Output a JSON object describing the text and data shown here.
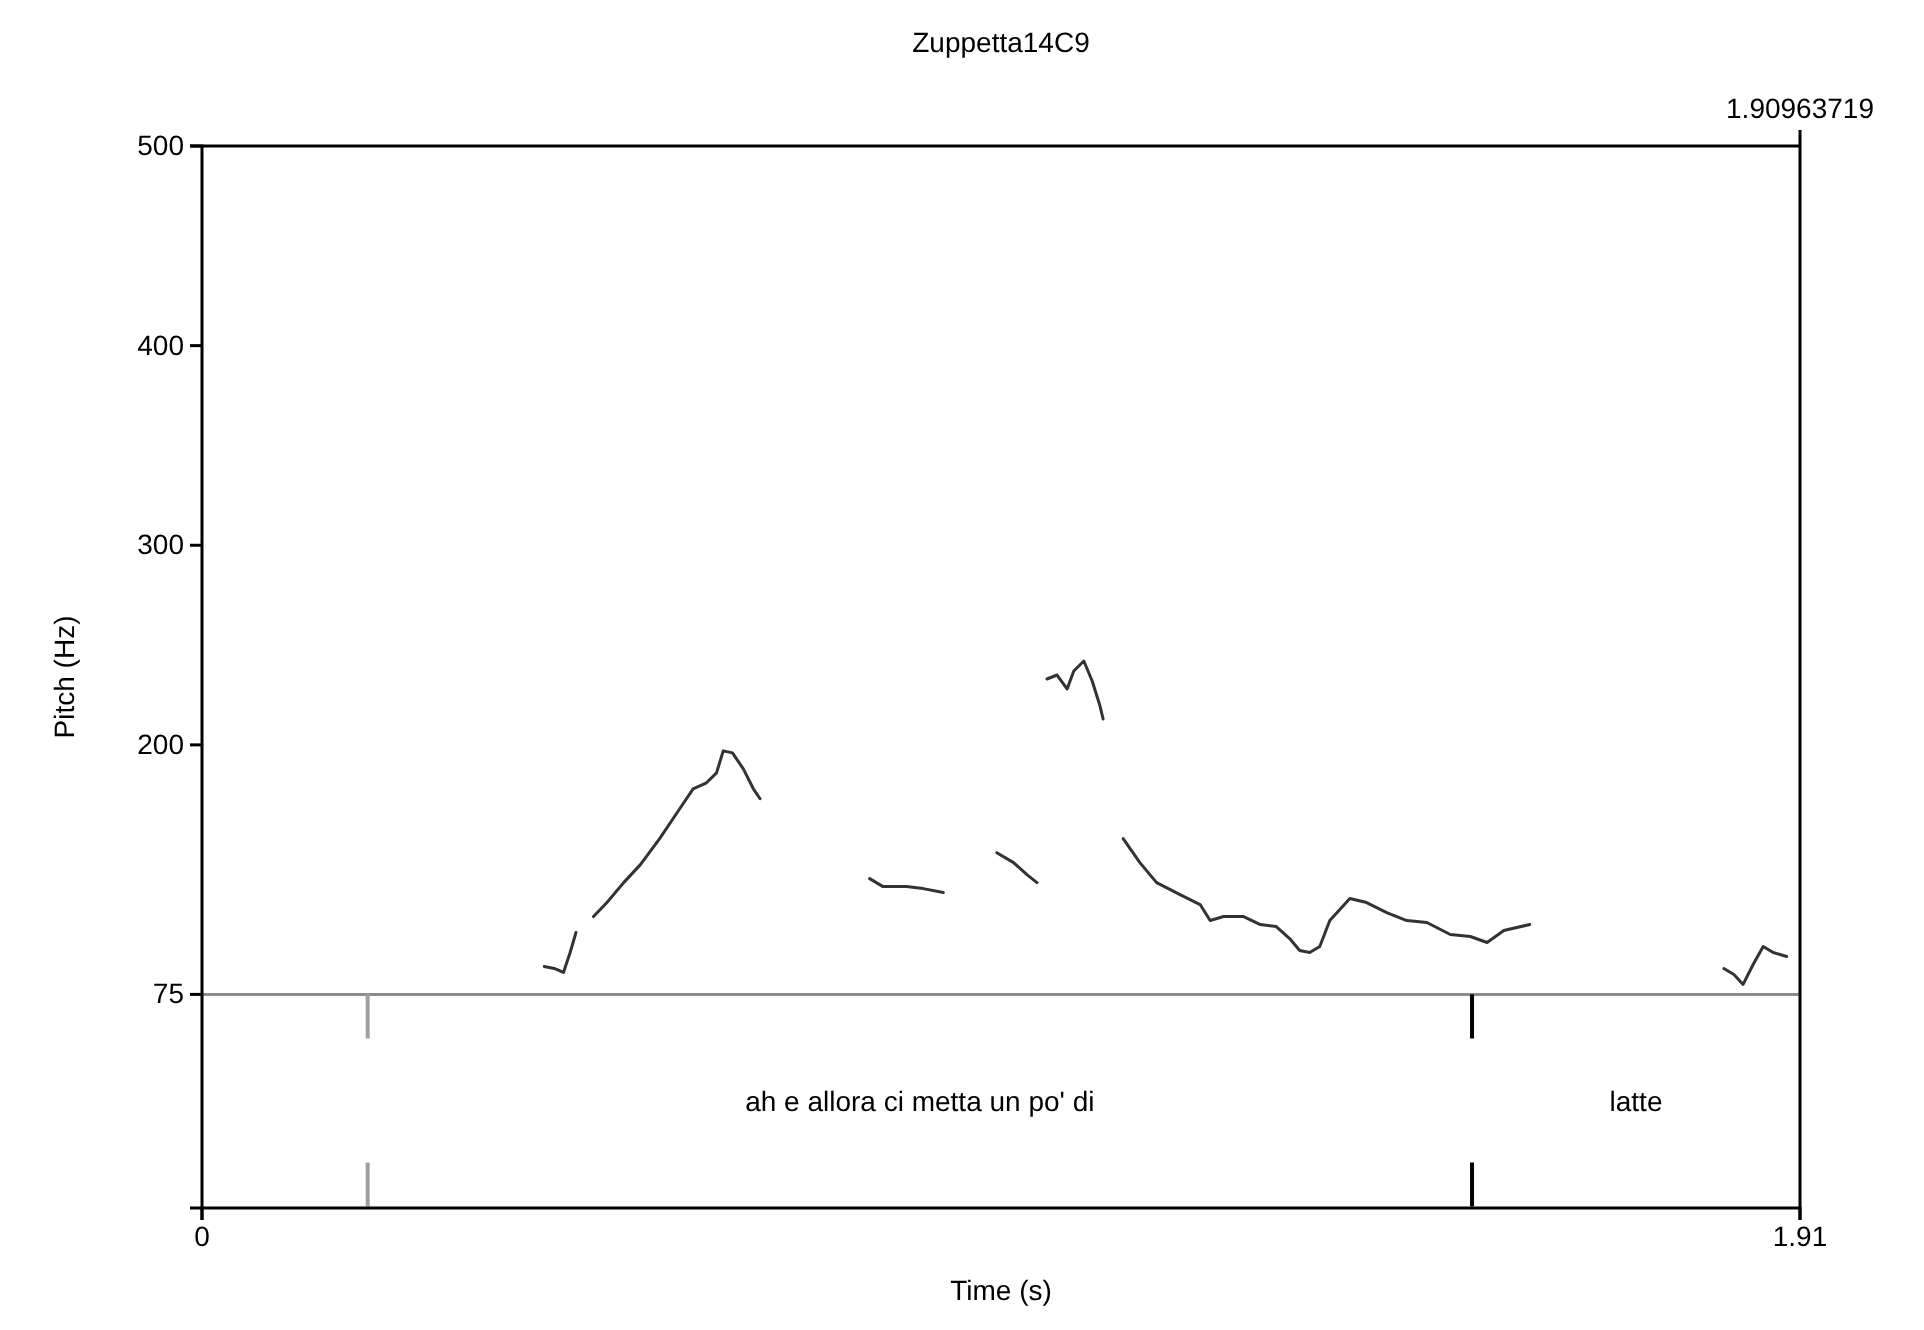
{
  "chart_data": {
    "type": "line",
    "title": "Zuppetta14C9",
    "xlabel": "Time (s)",
    "ylabel": "Pitch (Hz)",
    "x": [
      0.409,
      0.421,
      0.432,
      0.44,
      0.447,
      0.457,
      0.468,
      0.484,
      0.504,
      0.524,
      0.547,
      0.571,
      0.587,
      0.603,
      0.615,
      0.623,
      0.634,
      0.647,
      0.659,
      0.667,
      0.73,
      0.798,
      0.814,
      0.842,
      0.862,
      0.886,
      0.92,
      0.95,
      0.97,
      0.986,
      0.998,
      1.004,
      1.01,
      1.022,
      1.034,
      1.042,
      1.054,
      1.064,
      1.073,
      1.077,
      1.09,
      1.101,
      1.121,
      1.141,
      1.169,
      1.193,
      1.205,
      1.221,
      1.245,
      1.265,
      1.284,
      1.3,
      1.312,
      1.324,
      1.336,
      1.348,
      1.372,
      1.392,
      1.416,
      1.44,
      1.464,
      1.492,
      1.516,
      1.536,
      1.556,
      1.587,
      1.7,
      1.819,
      1.831,
      1.842,
      1.854,
      1.866,
      1.878,
      1.894
    ],
    "series": [
      {
        "color": "#333333",
        "values": [
          89,
          88,
          86,
          96,
          106,
          null,
          114,
          121,
          131,
          140,
          153,
          168,
          178,
          181,
          186,
          197,
          196,
          188,
          178,
          173,
          null,
          133,
          129,
          129,
          128,
          126,
          null,
          146,
          141,
          135,
          131,
          null,
          233,
          235,
          228,
          237,
          242,
          232,
          220,
          213,
          null,
          153,
          141,
          131,
          125,
          120,
          112,
          114,
          114,
          110,
          109,
          103,
          97,
          96,
          99,
          112,
          123,
          121,
          116,
          112,
          111,
          105,
          104,
          101,
          107,
          110,
          null,
          88,
          85,
          80,
          90,
          99,
          96,
          94
        ]
      }
    ],
    "xlim": [
      0,
      1.91
    ],
    "xticks": [
      0,
      1.91
    ],
    "ylim": [
      -32,
      500
    ],
    "yticks": [
      75,
      200,
      300,
      400,
      500
    ],
    "grid": false,
    "marker": "none",
    "line_style": "solid",
    "ref_lines": [
      {
        "axis": "y",
        "value": 75,
        "color": "#8c8c8c"
      },
      {
        "axis": "x",
        "value": 0.198,
        "color": "#a0a0a0",
        "line_style": "dashed"
      },
      {
        "axis": "x",
        "value": 1.518,
        "color": "#000000",
        "line_style": "dashed"
      }
    ],
    "annotations": [
      "1.90963719",
      "ah e allora ci metta un po' di",
      "latte"
    ]
  }
}
